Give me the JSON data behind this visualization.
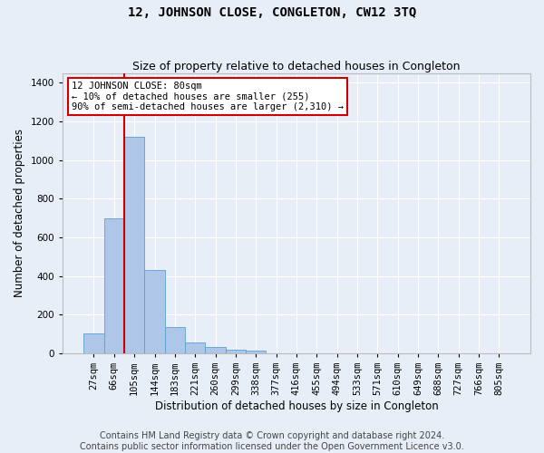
{
  "title": "12, JOHNSON CLOSE, CONGLETON, CW12 3TQ",
  "subtitle": "Size of property relative to detached houses in Congleton",
  "xlabel": "Distribution of detached houses by size in Congleton",
  "ylabel": "Number of detached properties",
  "bar_labels": [
    "27sqm",
    "66sqm",
    "105sqm",
    "144sqm",
    "183sqm",
    "221sqm",
    "260sqm",
    "299sqm",
    "338sqm",
    "377sqm",
    "416sqm",
    "455sqm",
    "494sqm",
    "533sqm",
    "571sqm",
    "610sqm",
    "649sqm",
    "688sqm",
    "727sqm",
    "766sqm",
    "805sqm"
  ],
  "bar_values": [
    105,
    700,
    1120,
    430,
    135,
    55,
    33,
    18,
    12,
    0,
    0,
    0,
    0,
    0,
    0,
    0,
    0,
    0,
    0,
    0,
    0
  ],
  "bar_color": "#aec6e8",
  "bar_edge_color": "#5a9fd4",
  "vline_color": "#cc0000",
  "vline_x": 1.5,
  "ylim": [
    0,
    1450
  ],
  "yticks": [
    0,
    200,
    400,
    600,
    800,
    1000,
    1200,
    1400
  ],
  "annotation_text": "12 JOHNSON CLOSE: 80sqm\n← 10% of detached houses are smaller (255)\n90% of semi-detached houses are larger (2,310) →",
  "annotation_box_color": "#ffffff",
  "annotation_border_color": "#cc0000",
  "footer_line1": "Contains HM Land Registry data © Crown copyright and database right 2024.",
  "footer_line2": "Contains public sector information licensed under the Open Government Licence v3.0.",
  "background_color": "#e8eef8",
  "grid_color": "#ffffff",
  "title_fontsize": 10,
  "subtitle_fontsize": 9,
  "axis_label_fontsize": 8.5,
  "tick_fontsize": 7.5,
  "annotation_fontsize": 7.5,
  "footer_fontsize": 7
}
